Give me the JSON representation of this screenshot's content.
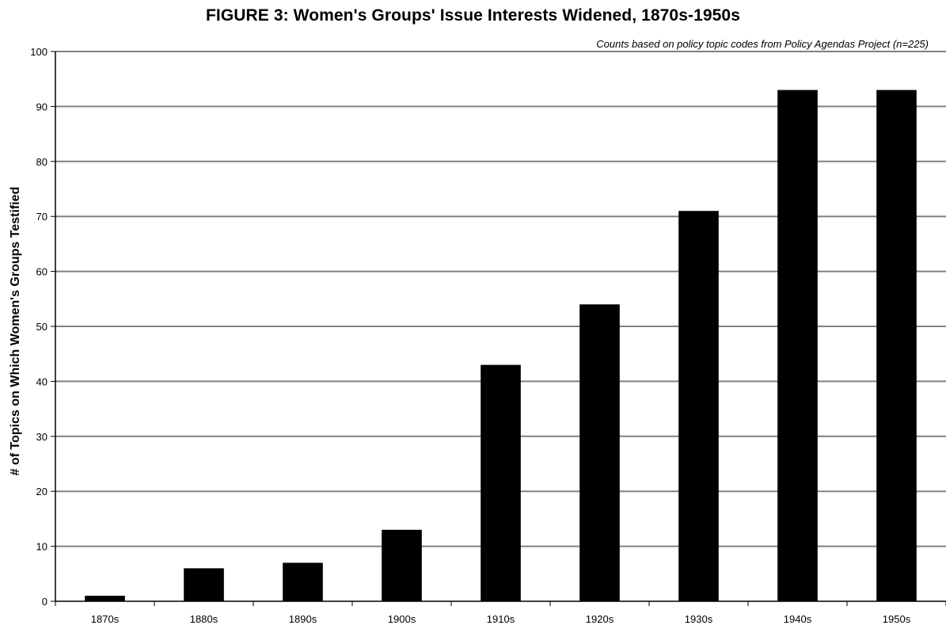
{
  "chart_data": {
    "type": "bar",
    "title": "FIGURE 3: Women's Groups' Issue Interests Widened, 1870s-1950s",
    "subtitle": "Counts based on policy topic codes from Policy Agendas Project (n=225)",
    "xlabel": "",
    "ylabel": "# of Topics on Which Women's Groups Testified",
    "categories": [
      "1870s",
      "1880s",
      "1890s",
      "1900s",
      "1910s",
      "1920s",
      "1930s",
      "1940s",
      "1950s"
    ],
    "values": [
      1,
      6,
      7,
      13,
      43,
      54,
      71,
      93,
      93
    ],
    "ylim": [
      0,
      100
    ],
    "yticks": [
      0,
      10,
      20,
      30,
      40,
      50,
      60,
      70,
      80,
      90,
      100
    ],
    "grid": true,
    "legend": "none",
    "colors": {
      "bar": "#000000",
      "grid": "#808080",
      "axis": "#000000"
    }
  }
}
